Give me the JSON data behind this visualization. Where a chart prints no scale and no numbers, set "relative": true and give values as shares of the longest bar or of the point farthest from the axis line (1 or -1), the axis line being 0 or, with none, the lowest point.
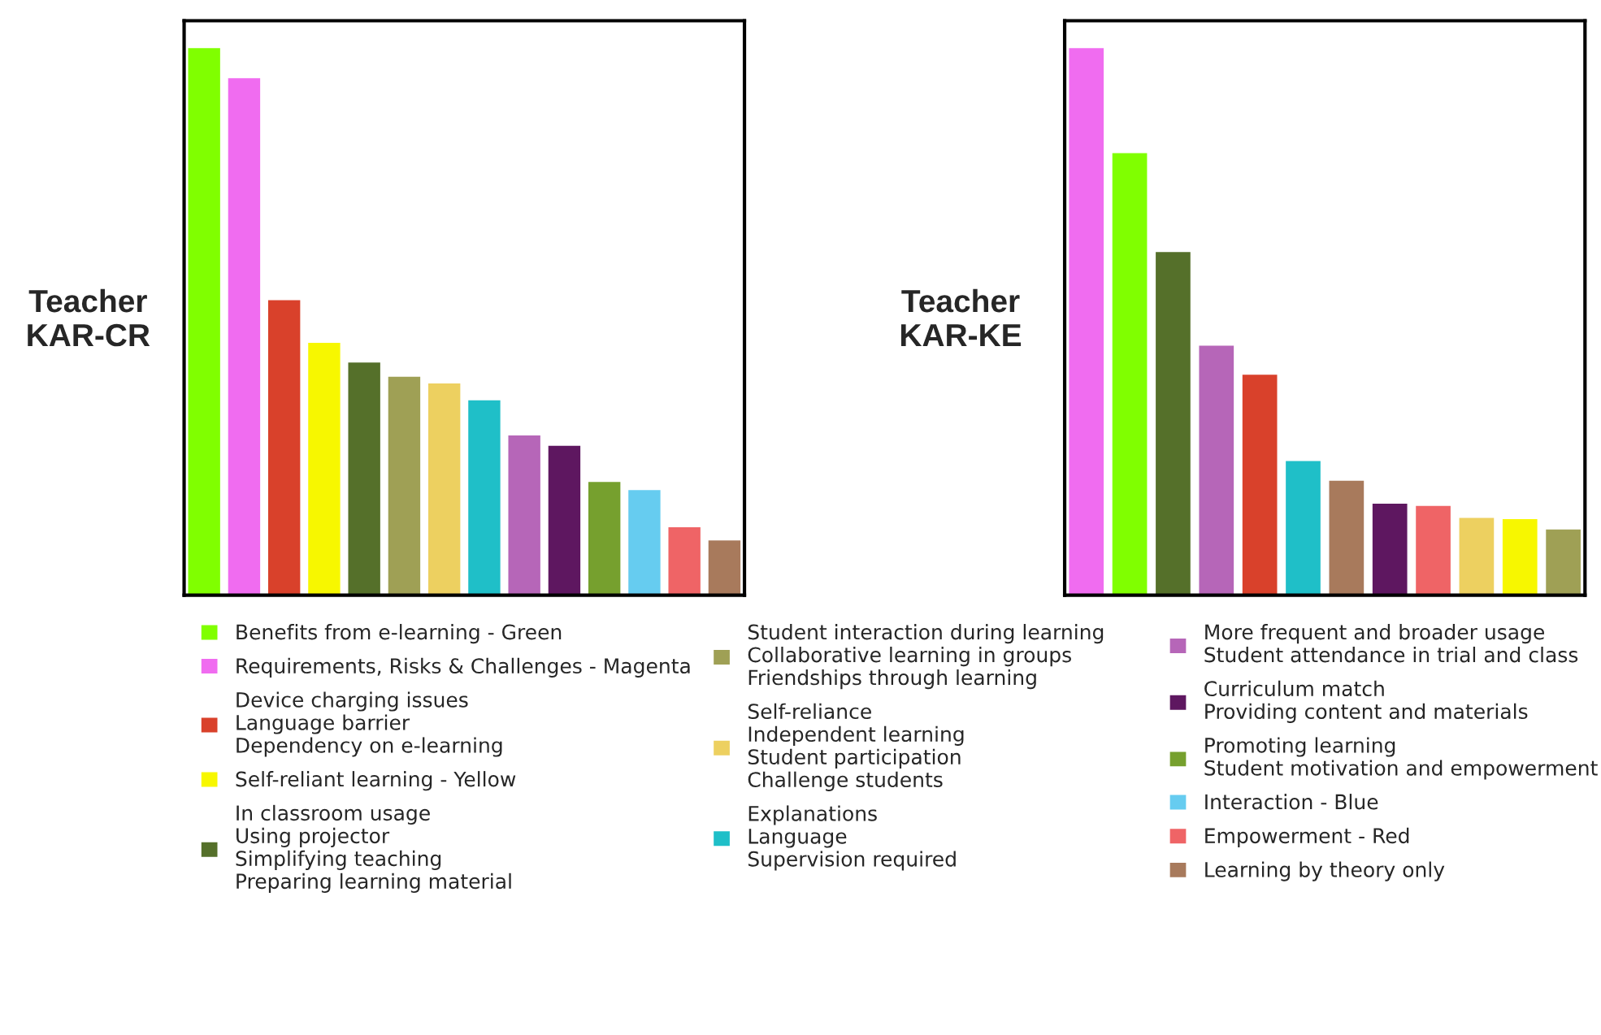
{
  "chart_data": [
    {
      "type": "bar",
      "title": "Teacher\nKAR-CR",
      "relative": true,
      "grid": false,
      "categories": [
        null,
        null,
        null,
        null,
        null,
        null,
        null,
        null,
        null,
        null,
        null,
        null,
        null,
        null
      ],
      "values": [
        1,
        0.945,
        0.539,
        0.461,
        0.425,
        0.399,
        0.387,
        0.356,
        0.292,
        0.273,
        0.207,
        0.192,
        0.124,
        0.1
      ],
      "colors": [
        "#80ff00",
        "#f06cf0",
        "#d9412b",
        "#f7f700",
        "#55702a",
        "#9fa055",
        "#edd060",
        "#1fbfc8",
        "#b666b8",
        "#5e1760",
        "#76a02e",
        "#66ccf0",
        "#ef6466",
        "#a87a5c"
      ],
      "annotations": [
        "Benefits from e-learning - Green",
        "Requirements, Risks & Challenges - Magenta",
        "Device charging issues\nLanguage barrier\nDependency on e-learning",
        "Self-reliant learning - Yellow",
        "In classroom usage\nUsing projector\nSimplifying teaching\nPreparing learning material",
        "Student interaction during learning\nCollaborative learning in groups\nFriendships through learning",
        "Self-reliance\nIndependent learning\nStudent participation\nChallenge students",
        "Explanations\nLanguage\nSupervision required",
        "More frequent and broader usage\nStudent attendance in trial and class",
        "Curriculum match\nProviding content and materials",
        "Promoting learning\nStudent motivation and empowerment",
        "Interaction - Blue",
        "Empowerment - Red",
        "Learning by theory only"
      ]
    },
    {
      "type": "bar",
      "title": "Teacher\nKAR-KE",
      "relative": true,
      "grid": false,
      "categories": [
        null,
        null,
        null,
        null,
        null,
        null,
        null,
        null,
        null,
        null,
        null,
        null
      ],
      "values": [
        1,
        0.808,
        0.627,
        0.456,
        0.403,
        0.245,
        0.209,
        0.167,
        0.163,
        0.141,
        0.139,
        0.12
      ],
      "colors": [
        "#f06cf0",
        "#80ff00",
        "#55702a",
        "#b666b8",
        "#d9412b",
        "#1fbfc8",
        "#a87a5c",
        "#5e1760",
        "#ef6466",
        "#edd060",
        "#f7f700",
        "#9fa055"
      ]
    }
  ]
}
